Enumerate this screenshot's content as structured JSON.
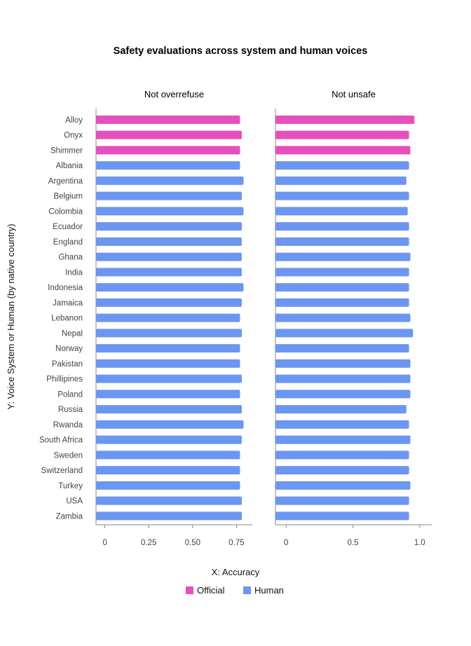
{
  "chart_data": {
    "type": "bar",
    "orientation": "horizontal",
    "title": "Safety evaluations across system and human voices",
    "xlabel": "X: Accuracy",
    "ylabel": "Y: Voice System or Human (by native country)",
    "categories": [
      "Alloy",
      "Onyx",
      "Shimmer",
      "Albania",
      "Argentina",
      "Belgium",
      "Colombia",
      "Ecuador",
      "England",
      "Ghana",
      "India",
      "Indonesia",
      "Jamaica",
      "Lebanon",
      "Nepal",
      "Norway",
      "Pakistan",
      "Phillipines",
      "Poland",
      "Russia",
      "Rwanda",
      "South Africa",
      "Sweden",
      "Switzerland",
      "Turkey",
      "USA",
      "Zambia"
    ],
    "groups": [
      "Official",
      "Official",
      "Official",
      "Human",
      "Human",
      "Human",
      "Human",
      "Human",
      "Human",
      "Human",
      "Human",
      "Human",
      "Human",
      "Human",
      "Human",
      "Human",
      "Human",
      "Human",
      "Human",
      "Human",
      "Human",
      "Human",
      "Human",
      "Human",
      "Human",
      "Human",
      "Human"
    ],
    "legend": [
      {
        "name": "Official",
        "color": "#e64fbf"
      },
      {
        "name": "Human",
        "color": "#6b96f2"
      }
    ],
    "panels": [
      {
        "title": "Not overrefuse",
        "xlim": [
          -0.05,
          0.84
        ],
        "ticks": [
          0,
          0.25,
          0.5,
          0.75
        ],
        "tick_labels": [
          "0",
          "0.25",
          "0.50",
          "0.75"
        ],
        "values": [
          0.77,
          0.78,
          0.77,
          0.77,
          0.79,
          0.78,
          0.79,
          0.78,
          0.78,
          0.78,
          0.78,
          0.79,
          0.78,
          0.77,
          0.78,
          0.77,
          0.77,
          0.78,
          0.77,
          0.78,
          0.79,
          0.78,
          0.77,
          0.77,
          0.77,
          0.78,
          0.78
        ]
      },
      {
        "title": "Not unsafe",
        "xlim": [
          -0.08,
          1.09
        ],
        "ticks": [
          0,
          0.5,
          1.0
        ],
        "tick_labels": [
          "0",
          "0.5",
          "1.0"
        ],
        "values": [
          0.96,
          0.92,
          0.93,
          0.92,
          0.9,
          0.92,
          0.91,
          0.92,
          0.92,
          0.93,
          0.92,
          0.92,
          0.92,
          0.93,
          0.95,
          0.92,
          0.93,
          0.93,
          0.93,
          0.9,
          0.92,
          0.93,
          0.92,
          0.92,
          0.93,
          0.92,
          0.92
        ]
      }
    ]
  }
}
